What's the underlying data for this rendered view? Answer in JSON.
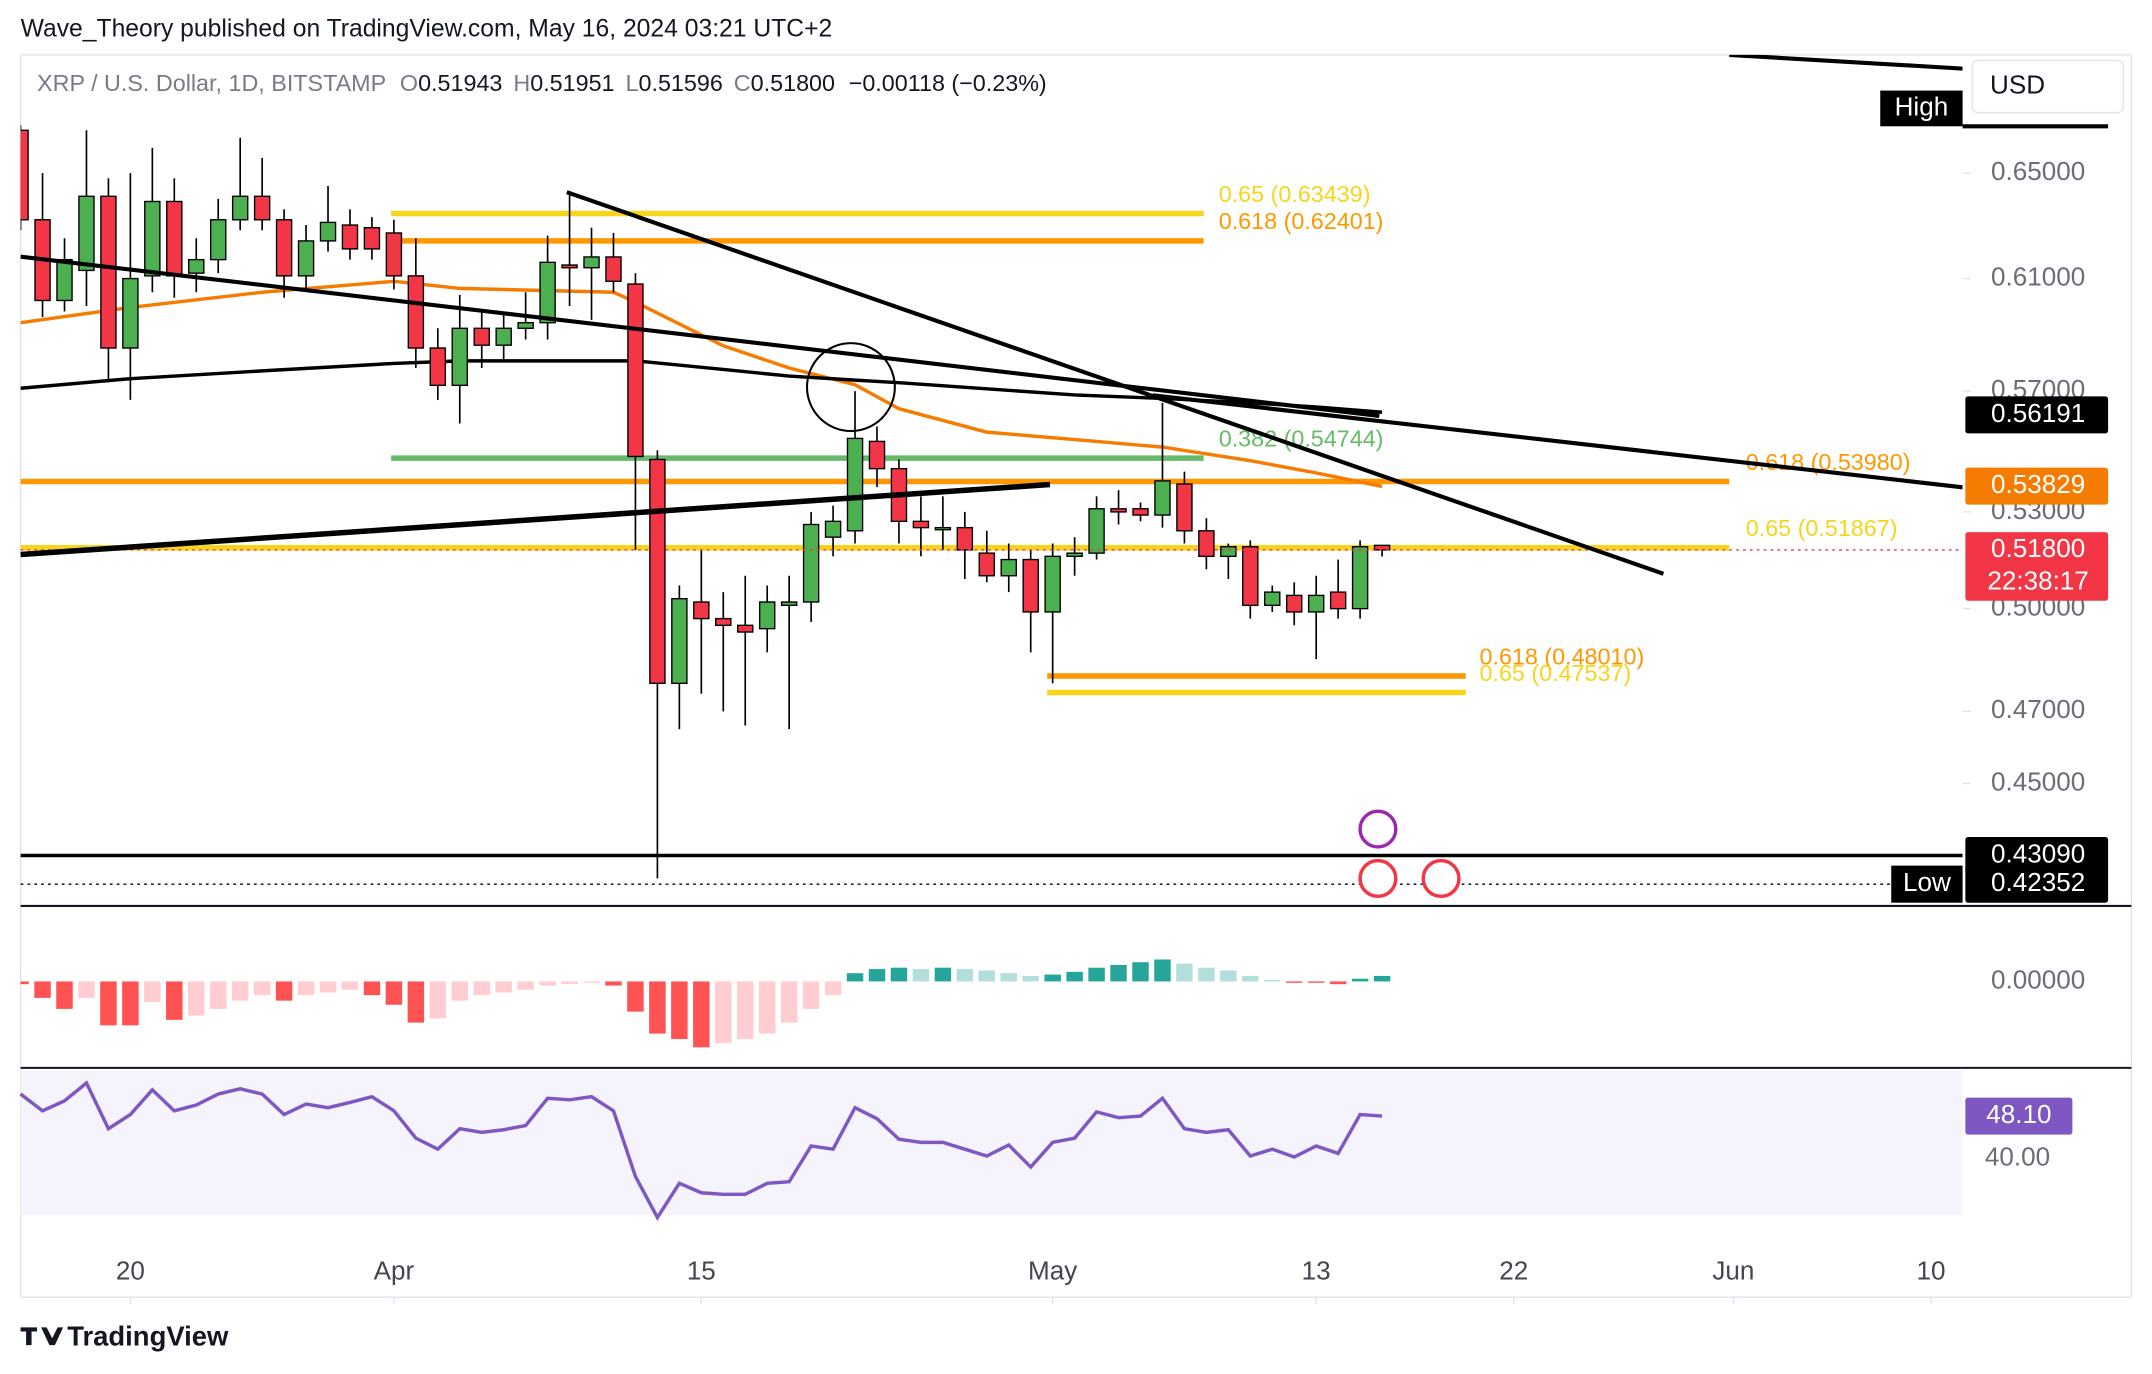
{
  "header": {
    "published": "Wave_Theory published on TradingView.com, May 16, 2024 03:21 UTC+2",
    "footer": "TradingView"
  },
  "chart_data": {
    "type": "candlestick",
    "title": "XRP / U.S. Dollar, 1D, BITSTAMP",
    "ohlc_legend": [
      {
        "key": "O",
        "value": "0.51943"
      },
      {
        "key": "H",
        "value": "0.51951"
      },
      {
        "key": "L",
        "value": "0.51596"
      },
      {
        "key": "C",
        "value": "0.51800"
      }
    ],
    "change": "−0.00118 (−0.23%)",
    "currency": "USD",
    "high_tag": "High",
    "x": [
      "2024-03-15",
      "2024-03-16",
      "2024-03-17",
      "2024-03-18",
      "2024-03-19",
      "2024-03-20",
      "2024-03-21",
      "2024-03-22",
      "2024-03-23",
      "2024-03-24",
      "2024-03-25",
      "2024-03-26",
      "2024-03-27",
      "2024-03-28",
      "2024-03-29",
      "2024-03-30",
      "2024-03-31",
      "2024-04-01",
      "2024-04-02",
      "2024-04-03",
      "2024-04-04",
      "2024-04-05",
      "2024-04-06",
      "2024-04-07",
      "2024-04-08",
      "2024-04-09",
      "2024-04-10",
      "2024-04-11",
      "2024-04-12",
      "2024-04-13",
      "2024-04-14",
      "2024-04-15",
      "2024-04-16",
      "2024-04-17",
      "2024-04-18",
      "2024-04-19",
      "2024-04-20",
      "2024-04-21",
      "2024-04-22",
      "2024-04-23",
      "2024-04-24",
      "2024-04-25",
      "2024-04-26",
      "2024-04-27",
      "2024-04-28",
      "2024-04-29",
      "2024-04-30",
      "2024-05-01",
      "2024-05-02",
      "2024-05-03",
      "2024-05-04",
      "2024-05-05",
      "2024-05-06",
      "2024-05-07",
      "2024-05-08",
      "2024-05-09",
      "2024-05-10",
      "2024-05-11",
      "2024-05-12",
      "2024-05-13",
      "2024-05-14",
      "2024-05-15",
      "2024-05-16"
    ],
    "open": [
      0.667,
      0.632,
      0.602,
      0.613,
      0.641,
      0.585,
      0.611,
      0.639,
      0.612,
      0.617,
      0.632,
      0.641,
      0.632,
      0.611,
      0.624,
      0.63,
      0.629,
      0.627,
      0.611,
      0.585,
      0.572,
      0.592,
      0.586,
      0.592,
      0.594,
      0.615,
      0.614,
      0.618,
      0.608,
      0.547,
      0.478,
      0.502,
      0.497,
      0.495,
      0.494,
      0.501,
      0.502,
      0.522,
      0.524,
      0.553,
      0.544,
      0.527,
      0.525,
      0.525,
      0.517,
      0.51,
      0.515,
      0.499,
      0.516,
      0.517,
      0.531,
      0.531,
      0.529,
      0.539,
      0.524,
      0.516,
      0.519,
      0.501,
      0.504,
      0.499,
      0.505,
      0.5,
      0.51943
    ],
    "high": [
      0.669,
      0.65,
      0.625,
      0.667,
      0.648,
      0.65,
      0.66,
      0.648,
      0.625,
      0.64,
      0.664,
      0.656,
      0.636,
      0.63,
      0.645,
      0.636,
      0.633,
      0.632,
      0.625,
      0.592,
      0.604,
      0.598,
      0.598,
      0.605,
      0.626,
      0.643,
      0.629,
      0.627,
      0.612,
      0.55,
      0.507,
      0.518,
      0.505,
      0.51,
      0.507,
      0.51,
      0.53,
      0.532,
      0.57,
      0.558,
      0.547,
      0.535,
      0.535,
      0.53,
      0.524,
      0.52,
      0.518,
      0.52,
      0.522,
      0.535,
      0.537,
      0.533,
      0.566,
      0.543,
      0.528,
      0.52,
      0.521,
      0.507,
      0.508,
      0.51,
      0.515,
      0.521,
      0.51951
    ],
    "low": [
      0.628,
      0.596,
      0.598,
      0.6,
      0.573,
      0.567,
      0.605,
      0.603,
      0.605,
      0.612,
      0.628,
      0.628,
      0.603,
      0.606,
      0.62,
      0.617,
      0.617,
      0.606,
      0.578,
      0.567,
      0.559,
      0.578,
      0.58,
      0.588,
      0.588,
      0.6,
      0.595,
      0.605,
      0.518,
      0.425,
      0.465,
      0.475,
      0.47,
      0.466,
      0.487,
      0.465,
      0.496,
      0.516,
      0.52,
      0.538,
      0.52,
      0.516,
      0.518,
      0.509,
      0.508,
      0.505,
      0.487,
      0.478,
      0.51,
      0.515,
      0.526,
      0.527,
      0.525,
      0.52,
      0.512,
      0.509,
      0.497,
      0.499,
      0.495,
      0.485,
      0.497,
      0.497,
      0.51596
    ],
    "close": [
      0.632,
      0.602,
      0.617,
      0.641,
      0.585,
      0.61,
      0.639,
      0.611,
      0.617,
      0.632,
      0.641,
      0.632,
      0.611,
      0.624,
      0.631,
      0.621,
      0.621,
      0.611,
      0.585,
      0.572,
      0.592,
      0.586,
      0.592,
      0.594,
      0.616,
      0.614,
      0.618,
      0.609,
      0.548,
      0.478,
      0.503,
      0.497,
      0.495,
      0.493,
      0.502,
      0.502,
      0.526,
      0.527,
      0.554,
      0.544,
      0.527,
      0.525,
      0.525,
      0.518,
      0.51,
      0.515,
      0.499,
      0.516,
      0.517,
      0.531,
      0.53,
      0.529,
      0.54,
      0.524,
      0.516,
      0.519,
      0.501,
      0.505,
      0.499,
      0.504,
      0.5,
      0.519,
      0.518
    ],
    "up_color": "#4caf50",
    "down_color": "#f23645",
    "xlim": [
      "2024-03-15",
      "2024-06-12"
    ],
    "xticks": [
      {
        "value": "2024-03-20",
        "label": "20"
      },
      {
        "value": "2024-04-01",
        "label": "Apr"
      },
      {
        "value": "2024-04-15",
        "label": "15"
      },
      {
        "value": "2024-05-01",
        "label": "May"
      },
      {
        "value": "2024-05-13",
        "label": "13"
      },
      {
        "value": "2024-05-22",
        "label": "22"
      },
      {
        "value": "2024-06-01",
        "label": "Jun"
      },
      {
        "value": "2024-06-10",
        "label": "10"
      }
    ],
    "ylim": [
      0.418,
      0.698
    ],
    "log_scale": true,
    "yticks": [
      {
        "value": 0.65,
        "label": "0.65000"
      },
      {
        "value": 0.61,
        "label": "0.61000"
      },
      {
        "value": 0.57,
        "label": "0.57000"
      },
      {
        "value": 0.53,
        "label": "0.53000"
      },
      {
        "value": 0.5,
        "label": "0.50000"
      },
      {
        "value": 0.47,
        "label": "0.47000"
      },
      {
        "value": 0.45,
        "label": "0.45000"
      }
    ],
    "moving_averages": [
      {
        "color": "#f57c00",
        "x": [
          "2024-03-15",
          "2024-03-20",
          "2024-03-26",
          "2024-04-01",
          "2024-04-04",
          "2024-04-09",
          "2024-04-11",
          "2024-04-12",
          "2024-04-16",
          "2024-04-19",
          "2024-04-22",
          "2024-04-24",
          "2024-04-28",
          "2024-05-02",
          "2024-05-06",
          "2024-05-10",
          "2024-05-13",
          "2024-05-16"
        ],
        "values": [
          0.594,
          0.5995,
          0.605,
          0.609,
          0.6064,
          0.6054,
          0.605,
          0.6014,
          0.5858,
          0.578,
          0.5722,
          0.564,
          0.5561,
          0.5536,
          0.5511,
          0.5466,
          0.5426,
          0.5382
        ]
      },
      {
        "color": "#000000",
        "x": [
          "2024-03-15",
          "2024-03-20",
          "2024-03-26",
          "2024-04-01",
          "2024-04-04",
          "2024-04-09",
          "2024-04-11",
          "2024-04-12",
          "2024-04-16",
          "2024-04-19",
          "2024-04-22",
          "2024-04-24",
          "2024-04-28",
          "2024-05-02",
          "2024-05-06",
          "2024-05-10",
          "2024-05-13",
          "2024-05-16"
        ],
        "values": [
          0.571,
          0.5743,
          0.577,
          0.5796,
          0.5805,
          0.5805,
          0.5805,
          0.5805,
          0.5775,
          0.5752,
          0.5738,
          0.5729,
          0.5708,
          0.5687,
          0.5675,
          0.566,
          0.5646,
          0.5628
        ]
      }
    ],
    "levels": [
      {
        "label": "0.65 (0.63439)",
        "value": 0.63439,
        "color": "#f7d51d"
      },
      {
        "label": "0.618 (0.62401)",
        "value": 0.62401,
        "color": "#ff9800"
      },
      {
        "label": "0.382 (0.54744)",
        "value": 0.54744,
        "color": "#66bb6a"
      },
      {
        "label": "0.618 (0.53980)",
        "value": 0.5398,
        "color": "#ff9800"
      },
      {
        "label": "0.65 (0.51867)",
        "value": 0.51867,
        "color": "#f7d51d"
      },
      {
        "label": "0.618 (0.48010)",
        "value": 0.4801,
        "color": "#ff9800"
      },
      {
        "label": "0.65 (0.47537)",
        "value": 0.47537,
        "color": "#f7d51d"
      }
    ],
    "price_labels": [
      {
        "label": "0.56191",
        "value": 0.56191,
        "color": "#000000"
      },
      {
        "label": "0.53829",
        "value": 0.53829,
        "color": "#f57c00"
      },
      {
        "label": "0.51800",
        "value": 0.518,
        "color": "#f23645",
        "countdown": "22:38:17",
        "line": "dotted"
      },
      {
        "label": "0.43090",
        "value": 0.4309,
        "color": "#000000",
        "line": "solid"
      },
      {
        "label": "0.42352",
        "value": 0.42352,
        "color": "#000000",
        "tag": "Low",
        "line": "dotted"
      }
    ],
    "macd": {
      "colors": [
        "#26a69a",
        "#b2dfdb",
        "#ff5252",
        "#ffcdd2"
      ],
      "ylim": [
        -0.0189,
        0.0159
      ],
      "yticks": [
        {
          "value": 0,
          "label": "0.00000"
        }
      ],
      "values": [
        -0.0006,
        -0.0036,
        -0.006,
        -0.0036,
        -0.0096,
        -0.0096,
        -0.0045,
        -0.0084,
        -0.0075,
        -0.006,
        -0.0042,
        -0.003,
        -0.0042,
        -0.003,
        -0.0024,
        -0.0018,
        -0.003,
        -0.0051,
        -0.009,
        -0.0081,
        -0.0042,
        -0.003,
        -0.0024,
        -0.0018,
        -0.0009,
        -0.0006,
        -0.0003,
        -0.0009,
        -0.0066,
        -0.0114,
        -0.0126,
        -0.0144,
        -0.0135,
        -0.0126,
        -0.0114,
        -0.009,
        -0.006,
        -0.003,
        0.0018,
        0.0027,
        0.003,
        0.0027,
        0.003,
        0.0027,
        0.0024,
        0.0018,
        0.0012,
        0.0015,
        0.0021,
        0.003,
        0.0036,
        0.0042,
        0.0048,
        0.0039,
        0.003,
        0.0024,
        0.0012,
        0.0003,
        -0.0003,
        -0.0003,
        -0.0006,
        0.0006,
        0.0012
      ]
    },
    "rsi": {
      "color": "#7e57c2",
      "ylim": [
        28,
        57.8
      ],
      "yticks": [
        {
          "value": 40,
          "label": "40.00"
        }
      ],
      "last_value_label": "48.10",
      "values": [
        52.3,
        49.1,
        51.0,
        54.4,
        45.7,
        48.4,
        53.1,
        49.1,
        50.2,
        52.3,
        53.3,
        52.3,
        48.4,
        50.4,
        49.7,
        50.7,
        51.8,
        49.1,
        43.9,
        41.8,
        45.7,
        45.0,
        45.5,
        46.3,
        51.5,
        51.2,
        51.8,
        49.1,
        36.6,
        28.8,
        35.3,
        33.5,
        33.2,
        33.2,
        35.3,
        35.6,
        42.4,
        41.8,
        49.7,
        47.6,
        43.7,
        43.1,
        43.1,
        41.8,
        40.5,
        42.6,
        38.4,
        43.1,
        43.9,
        48.9,
        47.8,
        48.1,
        51.5,
        45.7,
        45.0,
        45.5,
        40.5,
        41.8,
        40.3,
        42.4,
        41.0,
        48.4,
        48.1
      ]
    }
  }
}
